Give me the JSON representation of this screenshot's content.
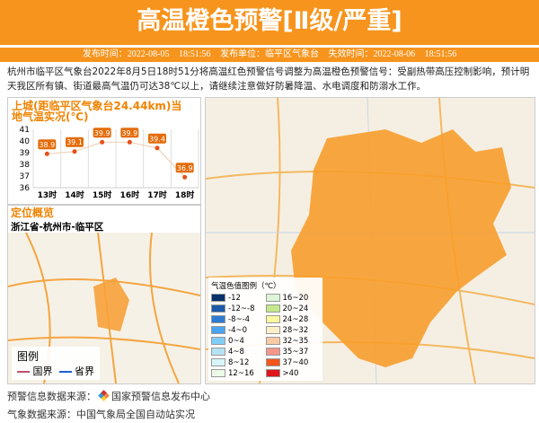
{
  "header": {
    "title": "高温橙色预警[Ⅱ级/严重]",
    "issue_time": "发布时间：2022-08-05 18:51:56",
    "issuer": "发布单位：临平区气象台",
    "expire_time": "失效时间：2022-08-06 18:51:56"
  },
  "description": "杭州市临平区气象台2022年8月5日18时51分将高温红色预警信号调整为高温橙色预警信号：受副热带高压控制影响，预计明天我区所有镇、街道最高气温仍可达38℃以上，请继续注意做好防暑降温、水电调度和防溺水工作。",
  "chart_data": {
    "type": "line",
    "title": "上城(距临平区气象台24.44km)当地气温实况(℃)",
    "categories": [
      "13时",
      "14时",
      "15时",
      "16时",
      "17时",
      "18时"
    ],
    "values": [
      38.9,
      39.1,
      39.9,
      39.9,
      39.4,
      36.9
    ],
    "ylim": [
      36,
      41
    ],
    "yticks": [
      "36",
      "37",
      "38",
      "39",
      "40",
      "41"
    ],
    "grid": true,
    "color": "#e46c0a"
  },
  "location": {
    "title": "定位概览",
    "text": "浙江省-杭州市-临平区"
  },
  "map_legend": {
    "title": "图例",
    "items": [
      {
        "label": "国界",
        "color": "#c0506a"
      },
      {
        "label": "省界",
        "color": "#1f5fd0"
      }
    ]
  },
  "temp_legend": {
    "title": "气温色值图例（℃）",
    "items": [
      {
        "label": "-12",
        "color": "#08306b"
      },
      {
        "label": "16~20",
        "color": "#dcf5d6"
      },
      {
        "label": "-12~-8",
        "color": "#1c5aa8"
      },
      {
        "label": "20~24",
        "color": "#c4e88a"
      },
      {
        "label": "-8~-4",
        "color": "#2f7bd3"
      },
      {
        "label": "24~28",
        "color": "#fcf8a0"
      },
      {
        "label": "-4~0",
        "color": "#4aa3ef"
      },
      {
        "label": "28~32",
        "color": "#fcefc8"
      },
      {
        "label": "0~4",
        "color": "#80cdf8"
      },
      {
        "label": "32~35",
        "color": "#f9cba4"
      },
      {
        "label": "4~8",
        "color": "#b6e3f4"
      },
      {
        "label": "35~37",
        "color": "#f4978a"
      },
      {
        "label": "8~12",
        "color": "#d8f6fa"
      },
      {
        "label": "37~40",
        "color": "#f5561c"
      },
      {
        "label": "12~16",
        "color": "#eef9ea"
      },
      {
        "label": ">40",
        "color": "#e0141b"
      }
    ]
  },
  "footer": {
    "source1_label": "预警信息数据来源：",
    "source1": "国家预警信息发布中心",
    "source2": "气象数据来源：中国气象局全国自动站实况"
  }
}
